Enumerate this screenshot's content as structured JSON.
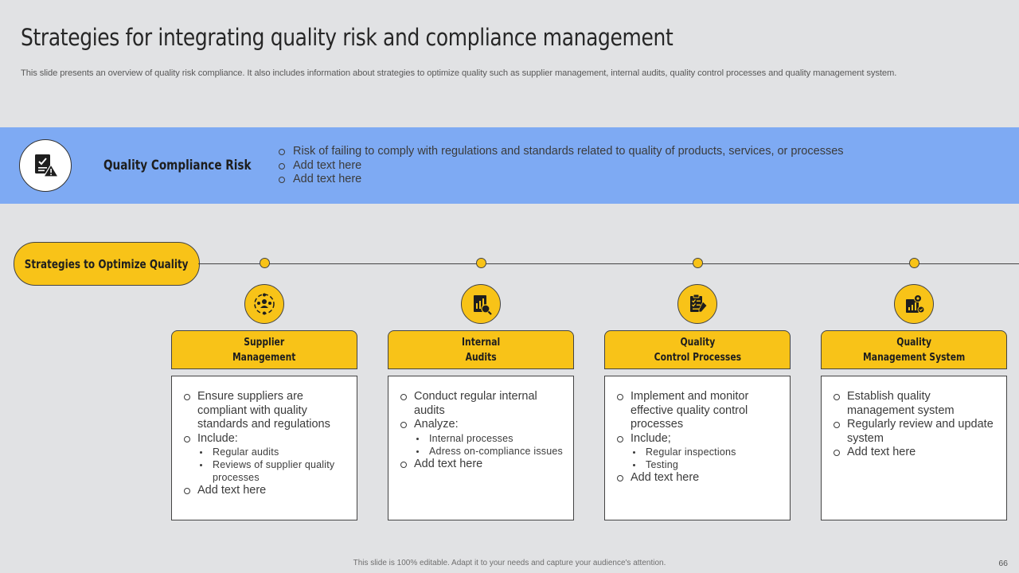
{
  "slide": {
    "title": "Strategies for integrating quality risk and compliance management",
    "subtitle": "This slide presents an overview of quality risk compliance. It also includes information about strategies to optimize quality such as supplier management, internal audits, quality control processes and quality management system."
  },
  "banner": {
    "icon": "compliance-document-warning-icon",
    "label": "Quality Compliance Risk",
    "points": [
      "Risk of failing to comply with regulations and standards related to quality of products, services, or processes",
      "Add text here",
      "Add text here"
    ]
  },
  "strategies": {
    "pill_label": "Strategies to Optimize Quality",
    "accent": "#f8c318",
    "banner_color": "#7eaaf3",
    "cards": [
      {
        "icon": "supplier-network-icon",
        "title": "Supplier\nManagement",
        "items": [
          {
            "text": "Ensure suppliers are compliant with quality standards and regulations",
            "sub": []
          },
          {
            "text": "Include:",
            "sub": [
              "Regular audits",
              "Reviews of supplier quality processes"
            ]
          },
          {
            "text": "Add text here",
            "sub": []
          }
        ]
      },
      {
        "icon": "audit-report-icon",
        "title": "Internal\nAudits",
        "items": [
          {
            "text": "Conduct regular internal audits",
            "sub": []
          },
          {
            "text": "Analyze:",
            "sub": [
              "Internal processes",
              "Adress on-compliance issues"
            ]
          },
          {
            "text": "Add text here",
            "sub": []
          }
        ]
      },
      {
        "icon": "checklist-clipboard-icon",
        "title": "Quality\nControl Processes",
        "items": [
          {
            "text": "Implement and monitor effective quality control processes",
            "sub": []
          },
          {
            "text": "Include;",
            "sub": [
              "Regular inspections",
              "Testing"
            ]
          },
          {
            "text": "Add text here",
            "sub": []
          }
        ]
      },
      {
        "icon": "quality-system-gear-icon",
        "title": "Quality\nManagement System",
        "items": [
          {
            "text": "Establish quality management system",
            "sub": []
          },
          {
            "text": "Regularly review and update system",
            "sub": []
          },
          {
            "text": "Add text here",
            "sub": []
          }
        ]
      }
    ]
  },
  "footer": {
    "note": "This slide is 100% editable. Adapt it to your needs and capture your audience's attention.",
    "page_number": "66"
  }
}
